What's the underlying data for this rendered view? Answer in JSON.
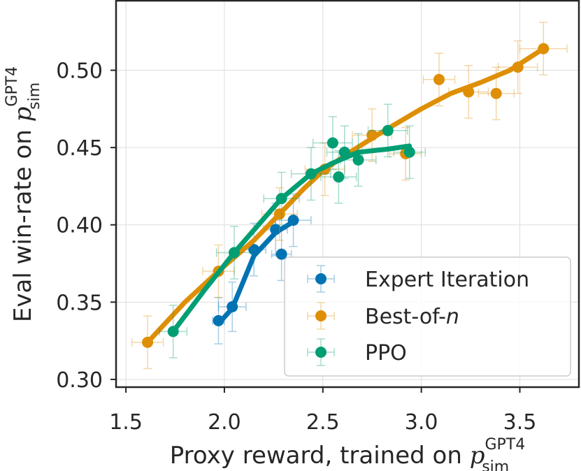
{
  "chart_data": {
    "type": "scatter",
    "xlabel": {
      "main": "Proxy reward, trained on ",
      "sym": "p",
      "sup": "GPT4",
      "sub": "sim"
    },
    "ylabel": {
      "main": "Eval win-rate on ",
      "sym": "p",
      "sup": "GPT4",
      "sub": "sim"
    },
    "xlim": [
      1.45,
      3.8
    ],
    "ylim": [
      0.295,
      0.545
    ],
    "xticks": [
      1.5,
      2.0,
      2.5,
      3.0,
      3.5
    ],
    "xtick_labels": [
      "1.5",
      "2.0",
      "2.5",
      "3.0",
      "3.5"
    ],
    "yticks": [
      0.3,
      0.35,
      0.4,
      0.45,
      0.5
    ],
    "ytick_labels": [
      "0.30",
      "0.35",
      "0.40",
      "0.45",
      "0.50"
    ],
    "grid": true,
    "legend_position": "bottom-right",
    "series": [
      {
        "name": "Expert Iteration",
        "color": "#0173b2",
        "points": [
          {
            "x": 1.97,
            "y": 0.338,
            "xerr": 0.03,
            "yerr": 0.015
          },
          {
            "x": 2.04,
            "y": 0.347,
            "xerr": 0.07,
            "yerr": 0.016
          },
          {
            "x": 2.15,
            "y": 0.384,
            "xerr": 0.06,
            "yerr": 0.017
          },
          {
            "x": 2.26,
            "y": 0.397,
            "xerr": 0.06,
            "yerr": 0.017
          },
          {
            "x": 2.29,
            "y": 0.381,
            "xerr": 0.05,
            "yerr": 0.017
          },
          {
            "x": 2.35,
            "y": 0.403,
            "xerr": 0.09,
            "yerr": 0.017
          }
        ],
        "line": [
          [
            1.97,
            0.336
          ],
          [
            2.04,
            0.346
          ],
          [
            2.15,
            0.38
          ],
          [
            2.26,
            0.395
          ],
          [
            2.35,
            0.402
          ]
        ]
      },
      {
        "name": "Best-of-n",
        "name_plain": "Best-of-",
        "name_italic": "n",
        "color": "#de8f05",
        "points": [
          {
            "x": 1.61,
            "y": 0.324,
            "xerr": 0.08,
            "yerr": 0.017
          },
          {
            "x": 1.97,
            "y": 0.37,
            "xerr": 0.08,
            "yerr": 0.017
          },
          {
            "x": 2.28,
            "y": 0.407,
            "xerr": 0.09,
            "yerr": 0.017
          },
          {
            "x": 2.51,
            "y": 0.436,
            "xerr": 0.1,
            "yerr": 0.017
          },
          {
            "x": 2.75,
            "y": 0.458,
            "xerr": 0.1,
            "yerr": 0.017
          },
          {
            "x": 2.92,
            "y": 0.446,
            "xerr": 0.08,
            "yerr": 0.017
          },
          {
            "x": 3.09,
            "y": 0.494,
            "xerr": 0.08,
            "yerr": 0.017
          },
          {
            "x": 3.24,
            "y": 0.486,
            "xerr": 0.1,
            "yerr": 0.017
          },
          {
            "x": 3.38,
            "y": 0.485,
            "xerr": 0.09,
            "yerr": 0.017
          },
          {
            "x": 3.49,
            "y": 0.502,
            "xerr": 0.1,
            "yerr": 0.017
          },
          {
            "x": 3.62,
            "y": 0.514,
            "xerr": 0.12,
            "yerr": 0.017
          }
        ],
        "line": [
          [
            1.61,
            0.324
          ],
          [
            1.8,
            0.35
          ],
          [
            1.97,
            0.37
          ],
          [
            2.15,
            0.39
          ],
          [
            2.28,
            0.407
          ],
          [
            2.4,
            0.423
          ],
          [
            2.51,
            0.436
          ],
          [
            2.65,
            0.448
          ],
          [
            2.8,
            0.46
          ],
          [
            3.0,
            0.475
          ],
          [
            3.15,
            0.485
          ],
          [
            3.3,
            0.492
          ],
          [
            3.45,
            0.5
          ],
          [
            3.62,
            0.514
          ]
        ]
      },
      {
        "name": "PPO",
        "color": "#029e73",
        "points": [
          {
            "x": 1.74,
            "y": 0.331,
            "xerr": 0.07,
            "yerr": 0.017
          },
          {
            "x": 2.05,
            "y": 0.382,
            "xerr": 0.09,
            "yerr": 0.017
          },
          {
            "x": 2.29,
            "y": 0.417,
            "xerr": 0.09,
            "yerr": 0.017
          },
          {
            "x": 2.44,
            "y": 0.433,
            "xerr": 0.1,
            "yerr": 0.017
          },
          {
            "x": 2.55,
            "y": 0.453,
            "xerr": 0.1,
            "yerr": 0.017
          },
          {
            "x": 2.58,
            "y": 0.431,
            "xerr": 0.09,
            "yerr": 0.017
          },
          {
            "x": 2.61,
            "y": 0.447,
            "xerr": 0.09,
            "yerr": 0.017
          },
          {
            "x": 2.68,
            "y": 0.442,
            "xerr": 0.09,
            "yerr": 0.017
          },
          {
            "x": 2.83,
            "y": 0.461,
            "xerr": 0.1,
            "yerr": 0.017
          },
          {
            "x": 2.94,
            "y": 0.447,
            "xerr": 0.08,
            "yerr": 0.017
          }
        ],
        "line": [
          [
            1.74,
            0.331
          ],
          [
            1.9,
            0.358
          ],
          [
            2.05,
            0.382
          ],
          [
            2.2,
            0.404
          ],
          [
            2.29,
            0.417
          ],
          [
            2.44,
            0.433
          ],
          [
            2.55,
            0.44
          ],
          [
            2.68,
            0.447
          ],
          [
            2.83,
            0.449
          ],
          [
            2.94,
            0.451
          ]
        ]
      }
    ]
  }
}
